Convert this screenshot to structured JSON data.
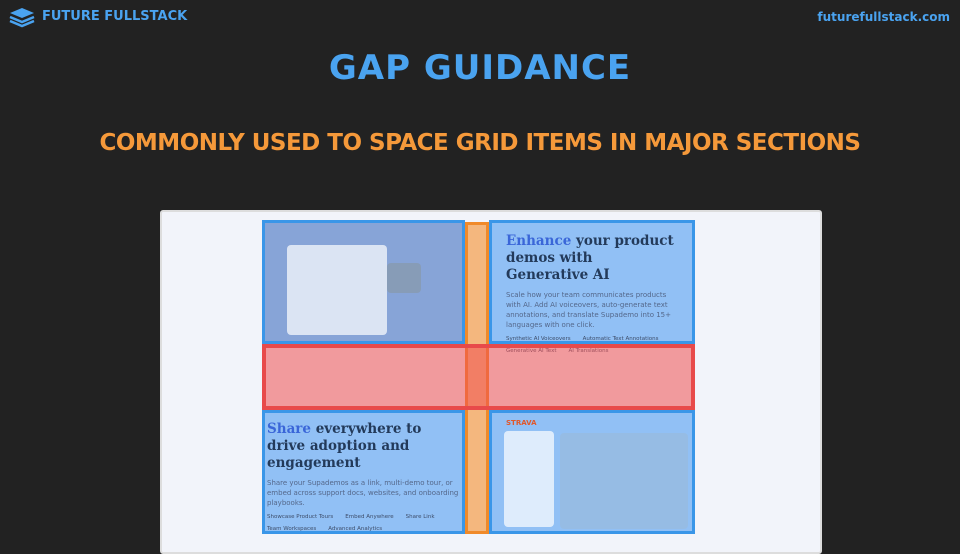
{
  "header": {
    "brand": "FUTURE FULLSTACK",
    "url": "futurefullstack.com"
  },
  "slide": {
    "title": "GAP GUIDANCE",
    "subtitle": "COMMONLY USED TO SPACE GRID ITEMS IN MAJOR SECTIONS"
  },
  "screenshot": {
    "top_right": {
      "heading_highlight": "Enhance",
      "heading_rest": "your product demos with Generative AI",
      "description": "Scale how your team communicates products with AI. Add AI voiceovers, auto-generate text annotations, and translate Supademo into 15+ languages with one click.",
      "features": [
        "Synthetic AI Voiceovers",
        "Automatic Text Annotations",
        "Generative AI Text",
        "AI Translations"
      ]
    },
    "bottom_left": {
      "heading_highlight": "Share",
      "heading_rest": "everywhere to drive adoption and engagement",
      "description": "Share your Supademos as a link, multi-demo tour, or embed across support docs, websites, and onboarding playbooks.",
      "features": [
        "Showcase Product Tours",
        "Embed Anywhere",
        "Share Link",
        "Team Workspaces",
        "Advanced Analytics"
      ]
    },
    "bottom_right": {
      "logo": "STRAVA"
    }
  }
}
